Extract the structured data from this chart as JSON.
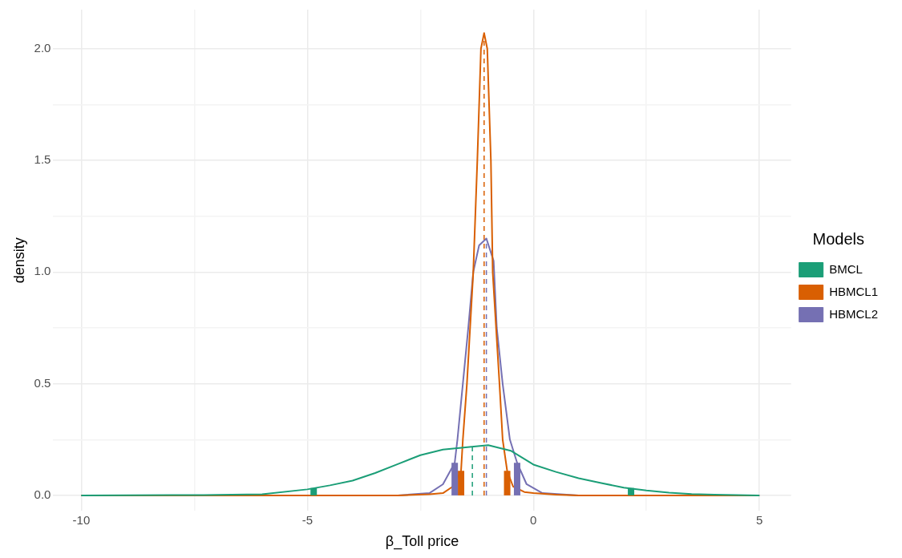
{
  "chart_data": {
    "type": "line",
    "xlabel": "β_Toll price",
    "ylabel": "density",
    "legend_title": "Models",
    "legend": "right",
    "grid": true,
    "marker": "none",
    "line_style": "solid",
    "xlim": [
      -10.62,
      5.7
    ],
    "ylim": [
      -0.07,
      2.175
    ],
    "xticks": [
      -10,
      {
        "value": -7.5,
        "label": null
      },
      -5,
      {
        "value": -2.5,
        "label": null
      },
      0,
      {
        "value": 2.5,
        "label": null
      },
      5
    ],
    "yticks": [
      {
        "value": 0,
        "label": "0.0"
      },
      {
        "value": 0.25,
        "label": null
      },
      {
        "value": 0.5,
        "label": "0.5"
      },
      {
        "value": 0.75,
        "label": null
      },
      {
        "value": 1,
        "label": "1.0"
      },
      {
        "value": 1.25,
        "label": null
      },
      {
        "value": 1.5,
        "label": "1.5"
      },
      {
        "value": 1.75,
        "label": null
      },
      {
        "value": 2,
        "label": "2.0"
      }
    ],
    "series": [
      {
        "name": "BMCL",
        "color": "#1b9e77",
        "x": [
          -10,
          -8,
          -7,
          -6,
          -5,
          -4.5,
          -4,
          -3.5,
          -3,
          -2.5,
          -2,
          -1.5,
          -1,
          -0.5,
          0,
          0.5,
          1,
          1.5,
          2,
          2.5,
          3,
          3.5,
          4,
          5
        ],
        "values": [
          0,
          0.001,
          0.002,
          0.005,
          0.027,
          0.045,
          0.066,
          0.1,
          0.14,
          0.18,
          0.205,
          0.215,
          0.225,
          0.2,
          0.138,
          0.105,
          0.077,
          0.055,
          0.035,
          0.022,
          0.012,
          0.006,
          0.003,
          0
        ]
      },
      {
        "name": "HBMCL1",
        "color": "#d95f02",
        "x": [
          -10,
          -3,
          -2.3,
          -2,
          -1.78,
          -1.6,
          -1.56,
          -1.47,
          -1.33,
          -1.24,
          -1.16,
          -1.09,
          -1.02,
          -0.94,
          -0.9,
          -0.75,
          -0.68,
          -0.58,
          -0.45,
          -0.2,
          0,
          0.5,
          1,
          5
        ],
        "values": [
          0,
          0,
          0.005,
          0.01,
          0.04,
          0.11,
          0.25,
          0.5,
          1,
          1.5,
          2,
          2.07,
          2,
          1.5,
          1,
          0.5,
          0.25,
          0.11,
          0.04,
          0.015,
          0.01,
          0.003,
          0,
          0
        ]
      },
      {
        "name": "HBMCL2",
        "color": "#7570b3",
        "x": [
          -10,
          -3,
          -2.3,
          -2,
          -1.74,
          -1.68,
          -1.56,
          -1.44,
          -1.33,
          -1.2,
          -1.04,
          -0.88,
          -0.81,
          -0.68,
          -0.52,
          -0.36,
          -0.15,
          0.2,
          1,
          5
        ],
        "values": [
          0,
          0,
          0.01,
          0.05,
          0.146,
          0.25,
          0.5,
          0.75,
          1,
          1.12,
          1.15,
          1.05,
          0.75,
          0.5,
          0.25,
          0.146,
          0.05,
          0.01,
          0,
          0
        ]
      },
      {
        "type": "bar",
        "color": "#1b9e77",
        "x": [
          -4.86,
          2.16
        ],
        "values": [
          0.033,
          0.033
        ]
      },
      {
        "type": "bar",
        "color": "#d95f02",
        "x": [
          -1.6,
          -0.58
        ],
        "values": [
          0.11,
          0.11
        ]
      },
      {
        "type": "bar",
        "color": "#7570b3",
        "x": [
          -1.74,
          -0.36
        ],
        "values": [
          0.146,
          0.146
        ]
      }
    ],
    "ref_lines": [
      {
        "axis": "x",
        "value": -1.35,
        "color": "#1b9e77",
        "line_style": "dashed"
      },
      {
        "axis": "x",
        "value": -1.09,
        "color": "#d95f02",
        "line_style": "dashed"
      },
      {
        "axis": "x",
        "value": -1.04,
        "color": "#7570b3",
        "line_style": "dashed"
      }
    ]
  }
}
